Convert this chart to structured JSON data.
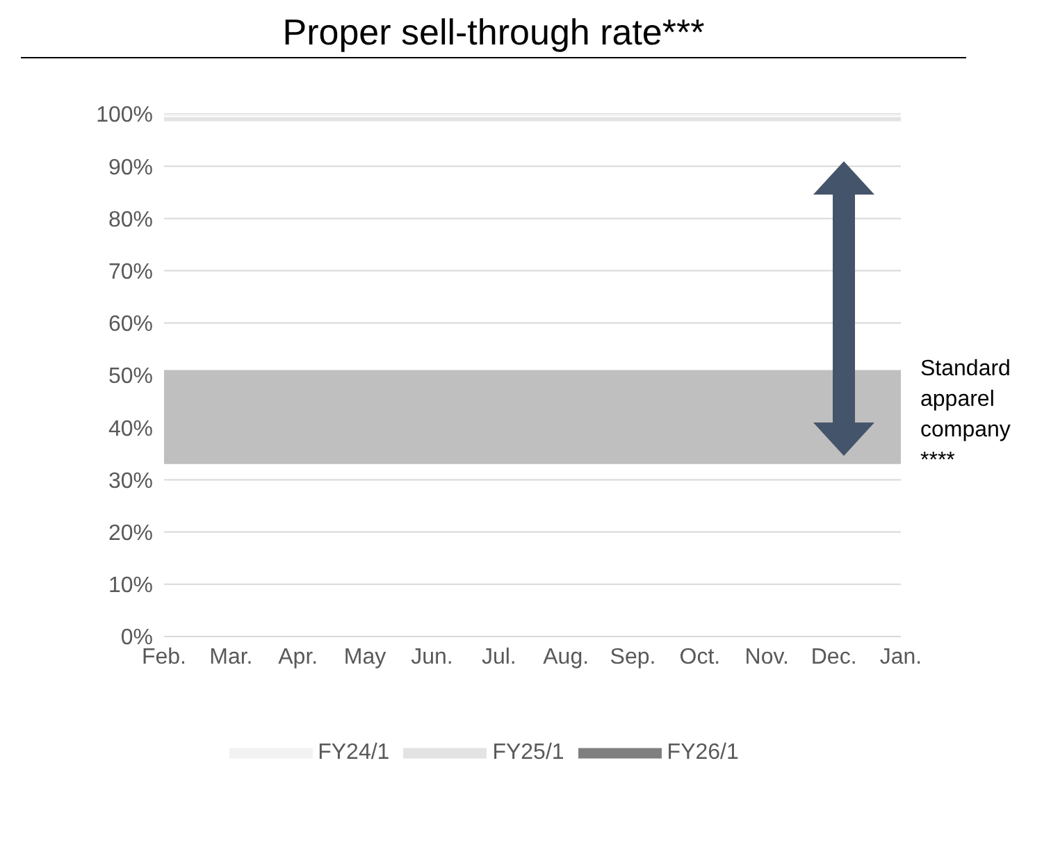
{
  "chart_data": {
    "type": "line",
    "title": "Proper sell-through rate***",
    "categories": [
      "Feb.",
      "Mar.",
      "Apr.",
      "May",
      "Jun.",
      "Jul.",
      "Aug.",
      "Sep.",
      "Oct.",
      "Nov.",
      "Dec.",
      "Jan."
    ],
    "series": [
      {
        "name": "FY24/1",
        "color": "#f2f2f2",
        "values": [
          100,
          100,
          100,
          100,
          100,
          100,
          100,
          100,
          100,
          100,
          100,
          100
        ]
      },
      {
        "name": "FY25/1",
        "color": "#e3e3e3",
        "values": [
          99,
          99,
          99,
          99,
          99,
          99,
          99,
          99,
          99,
          99,
          99,
          99
        ]
      },
      {
        "name": "FY26/1",
        "color": "#7f7f7f",
        "values": [
          null,
          null,
          null,
          null,
          null,
          null,
          null,
          null,
          null,
          null,
          null,
          null
        ]
      }
    ],
    "bands": [
      {
        "axis": "y",
        "from": 33,
        "to": 51,
        "label": "Standard apparel company ****",
        "color": "#bfbfbf"
      }
    ],
    "ylim": [
      0,
      100
    ],
    "yticks": [
      {
        "value": 0,
        "label": "0%"
      },
      {
        "value": 10,
        "label": "10%"
      },
      {
        "value": 20,
        "label": "20%"
      },
      {
        "value": 30,
        "label": "30%"
      },
      {
        "value": 40,
        "label": "40%"
      },
      {
        "value": 50,
        "label": "50%"
      },
      {
        "value": 60,
        "label": "60%"
      },
      {
        "value": 70,
        "label": "70%"
      },
      {
        "value": 80,
        "label": "80%"
      },
      {
        "value": 90,
        "label": "90%"
      },
      {
        "value": 100,
        "label": "100%"
      }
    ],
    "grid": "y",
    "legend": "bottom",
    "marker": "none",
    "line_style": "solid"
  }
}
